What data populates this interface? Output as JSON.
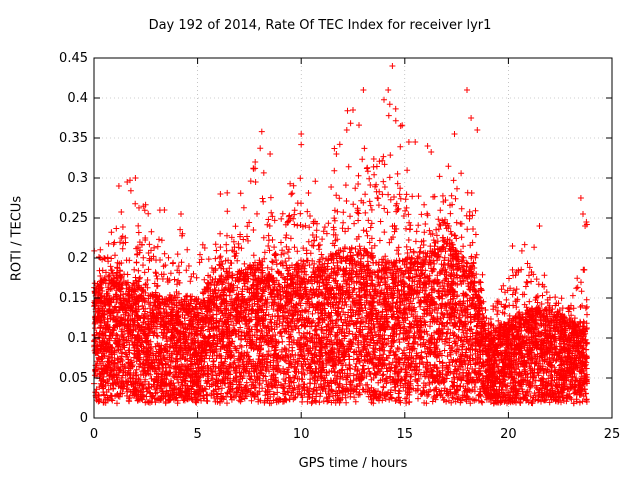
{
  "chart_data": {
    "type": "scatter",
    "title": "Day 192 of 2014, Rate Of TEC Index for receiver lyr1",
    "xlabel": "GPS time / hours",
    "ylabel": "ROTI / TECUs",
    "xlim": [
      0,
      25
    ],
    "ylim": [
      0,
      0.45
    ],
    "xticks": [
      0,
      5,
      10,
      15,
      20,
      25
    ],
    "yticks": [
      0,
      0.05,
      0.1,
      0.15,
      0.2,
      0.25,
      0.3,
      0.35,
      0.4,
      0.45
    ],
    "grid": true,
    "marker": "+",
    "color": "#ff0000",
    "envelope": {
      "x": [
        0,
        1,
        2,
        3,
        4,
        5,
        6,
        7,
        8,
        9,
        10,
        11,
        12,
        13,
        14,
        15,
        16,
        17,
        18,
        18.5,
        19,
        20,
        21,
        22,
        23,
        23.8
      ],
      "typical": [
        0.1,
        0.11,
        0.1,
        0.09,
        0.09,
        0.09,
        0.11,
        0.11,
        0.12,
        0.11,
        0.12,
        0.12,
        0.13,
        0.13,
        0.12,
        0.12,
        0.13,
        0.14,
        0.12,
        0.1,
        0.06,
        0.07,
        0.08,
        0.08,
        0.07,
        0.07
      ],
      "peak": [
        0.22,
        0.3,
        0.3,
        0.26,
        0.26,
        0.2,
        0.28,
        0.29,
        0.36,
        0.29,
        0.35,
        0.28,
        0.38,
        0.41,
        0.44,
        0.36,
        0.34,
        0.36,
        0.41,
        0.24,
        0.15,
        0.21,
        0.24,
        0.17,
        0.16,
        0.27
      ]
    },
    "highlight_points": [
      {
        "x": 0.3,
        "y": 0.2
      },
      {
        "x": 1.2,
        "y": 0.29
      },
      {
        "x": 1.6,
        "y": 0.295
      },
      {
        "x": 2.0,
        "y": 0.3
      },
      {
        "x": 3.4,
        "y": 0.26
      },
      {
        "x": 4.2,
        "y": 0.255
      },
      {
        "x": 6.1,
        "y": 0.28
      },
      {
        "x": 7.8,
        "y": 0.295
      },
      {
        "x": 8.1,
        "y": 0.358
      },
      {
        "x": 8.5,
        "y": 0.33
      },
      {
        "x": 10.0,
        "y": 0.355
      },
      {
        "x": 11.7,
        "y": 0.33
      },
      {
        "x": 12.2,
        "y": 0.36
      },
      {
        "x": 12.5,
        "y": 0.385
      },
      {
        "x": 13.0,
        "y": 0.41
      },
      {
        "x": 14.2,
        "y": 0.41
      },
      {
        "x": 14.4,
        "y": 0.44
      },
      {
        "x": 14.8,
        "y": 0.365
      },
      {
        "x": 15.2,
        "y": 0.345
      },
      {
        "x": 15.5,
        "y": 0.345
      },
      {
        "x": 16.1,
        "y": 0.34
      },
      {
        "x": 17.4,
        "y": 0.355
      },
      {
        "x": 18.0,
        "y": 0.41
      },
      {
        "x": 18.2,
        "y": 0.375
      },
      {
        "x": 18.5,
        "y": 0.36
      },
      {
        "x": 20.2,
        "y": 0.215
      },
      {
        "x": 21.5,
        "y": 0.24
      },
      {
        "x": 23.5,
        "y": 0.275
      },
      {
        "x": 23.6,
        "y": 0.255
      },
      {
        "x": 23.7,
        "y": 0.24
      }
    ]
  }
}
